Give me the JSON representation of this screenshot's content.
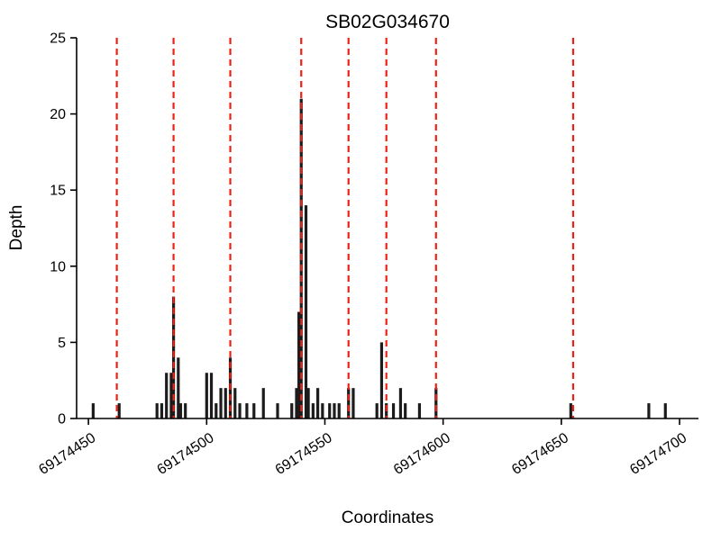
{
  "chart_data": {
    "type": "bar",
    "title": "SB02G034670",
    "xlabel": "Coordinates",
    "ylabel": "Depth",
    "xlim": [
      69174445,
      69174708
    ],
    "ylim": [
      0,
      25
    ],
    "yticks": [
      0,
      5,
      10,
      15,
      20,
      25
    ],
    "xticks": [
      69174450,
      69174500,
      69174550,
      69174600,
      69174650,
      69174700
    ],
    "grid": false,
    "legend": "none",
    "bar_color": "#1c1c1c",
    "vline_color": "#ee2116",
    "axis_color": "#000000",
    "bars": [
      [
        69174452,
        1
      ],
      [
        69174463,
        1
      ],
      [
        69174479,
        1
      ],
      [
        69174481,
        1
      ],
      [
        69174483,
        3
      ],
      [
        69174485,
        3
      ],
      [
        69174486,
        8
      ],
      [
        69174488,
        4
      ],
      [
        69174489,
        1
      ],
      [
        69174491,
        1
      ],
      [
        69174500,
        3
      ],
      [
        69174502,
        3
      ],
      [
        69174504,
        1
      ],
      [
        69174506,
        2
      ],
      [
        69174508,
        2
      ],
      [
        69174510,
        4
      ],
      [
        69174512,
        2
      ],
      [
        69174514,
        1
      ],
      [
        69174517,
        1
      ],
      [
        69174520,
        1
      ],
      [
        69174524,
        2
      ],
      [
        69174530,
        1
      ],
      [
        69174536,
        1
      ],
      [
        69174538,
        2
      ],
      [
        69174539,
        7
      ],
      [
        69174540,
        21
      ],
      [
        69174542,
        14
      ],
      [
        69174543,
        2
      ],
      [
        69174545,
        1
      ],
      [
        69174547,
        2
      ],
      [
        69174549,
        1
      ],
      [
        69174552,
        1
      ],
      [
        69174554,
        1
      ],
      [
        69174556,
        1
      ],
      [
        69174560,
        2
      ],
      [
        69174562,
        2
      ],
      [
        69174572,
        1
      ],
      [
        69174574,
        5
      ],
      [
        69174576,
        1
      ],
      [
        69174579,
        1
      ],
      [
        69174582,
        2
      ],
      [
        69174584,
        1
      ],
      [
        69174590,
        1
      ],
      [
        69174597,
        2
      ],
      [
        69174654,
        1
      ],
      [
        69174687,
        1
      ],
      [
        69174694,
        1
      ]
    ],
    "vlines": [
      69174462,
      69174486,
      69174510,
      69174540,
      69174560,
      69174576,
      69174597,
      69174655
    ]
  }
}
